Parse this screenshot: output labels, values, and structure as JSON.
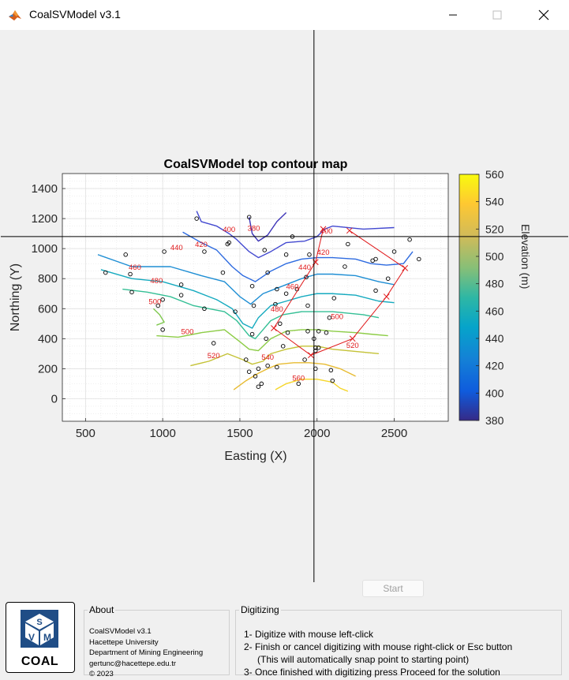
{
  "window": {
    "title": "CoalSVModel v3.1"
  },
  "plot": {
    "title": "CoalSVModel top contour map",
    "xlabel": "Easting (X)",
    "ylabel": "Northing (Y)",
    "xlim": [
      350,
      2850
    ],
    "ylim": [
      -150,
      1500
    ],
    "xticks": [
      500,
      1000,
      1500,
      2000,
      2500
    ],
    "yticks": [
      0,
      200,
      400,
      600,
      800,
      1000,
      1200,
      1400
    ],
    "grid": true,
    "colorbar": {
      "label": "Elevation (m)",
      "ticks": [
        380,
        400,
        420,
        440,
        460,
        480,
        500,
        520,
        540,
        560
      ],
      "range": [
        380,
        560
      ]
    },
    "cursor": {
      "x": 1980,
      "y": 1080
    }
  },
  "chart_data": {
    "type": "contour",
    "title": "CoalSVModel top contour map",
    "xlabel": "Easting (X)",
    "ylabel": "Northing (Y)",
    "xlim": [
      350,
      2850
    ],
    "ylim": [
      -150,
      1500
    ],
    "contours": [
      {
        "level": 380,
        "label": "380",
        "label_at": [
          1590,
          1120
        ],
        "color": "#3c33b7",
        "points": [
          [
            1560,
            1210
          ],
          [
            1580,
            1100
          ],
          [
            1620,
            1050
          ],
          [
            1680,
            1090
          ],
          [
            1740,
            1180
          ],
          [
            1800,
            1240
          ]
        ]
      },
      {
        "level": 400,
        "label": "400",
        "label_at": [
          1430,
          1110
        ],
        "color": "#4349d0",
        "points": [
          [
            1220,
            1250
          ],
          [
            1250,
            1180
          ],
          [
            1350,
            1150
          ],
          [
            1430,
            1100
          ],
          [
            1480,
            1060
          ],
          [
            1560,
            980
          ],
          [
            1620,
            940
          ],
          [
            1700,
            980
          ],
          [
            1800,
            1040
          ],
          [
            1920,
            1050
          ],
          [
            2000,
            1080
          ],
          [
            2050,
            1130
          ],
          [
            2100,
            1150
          ],
          [
            2300,
            1130
          ],
          [
            2500,
            1140
          ]
        ]
      },
      {
        "level": 400,
        "label": "400",
        "label_at": [
          2060,
          1100
        ],
        "color": "#4349d0",
        "points": []
      },
      {
        "level": 420,
        "label": "420",
        "label_at": [
          2040,
          960
        ],
        "color": "#2e6be0",
        "points": [
          [
            1130,
            1110
          ],
          [
            1250,
            1040
          ],
          [
            1350,
            990
          ],
          [
            1450,
            880
          ],
          [
            1520,
            820
          ],
          [
            1600,
            780
          ],
          [
            1700,
            850
          ],
          [
            1800,
            900
          ],
          [
            1900,
            930
          ],
          [
            2000,
            940
          ],
          [
            2100,
            940
          ],
          [
            2250,
            930
          ],
          [
            2350,
            900
          ],
          [
            2450,
            890
          ],
          [
            2560,
            900
          ],
          [
            2620,
            980
          ]
        ]
      },
      {
        "level": 420,
        "label": "420",
        "label_at": [
          1250,
          1010
        ],
        "color": "#2e6be0",
        "points": []
      },
      {
        "level": 440,
        "label": "440",
        "label_at": [
          1090,
          990
        ],
        "color": "#1e8ed4",
        "points": [
          [
            580,
            960
          ],
          [
            800,
            880
          ],
          [
            1050,
            880
          ],
          [
            1250,
            820
          ],
          [
            1400,
            780
          ],
          [
            1500,
            680
          ],
          [
            1570,
            630
          ],
          [
            1650,
            700
          ],
          [
            1800,
            760
          ],
          [
            1900,
            800
          ],
          [
            2000,
            830
          ],
          [
            2100,
            830
          ],
          [
            2250,
            820
          ],
          [
            2400,
            780
          ],
          [
            2500,
            760
          ]
        ]
      },
      {
        "level": 440,
        "label": "440",
        "label_at": [
          1920,
          860
        ],
        "color": "#1e8ed4",
        "points": []
      },
      {
        "level": 460,
        "label": "460",
        "label_at": [
          820,
          860
        ],
        "color": "#15aabf",
        "points": [
          [
            600,
            860
          ],
          [
            800,
            800
          ],
          [
            1000,
            780
          ],
          [
            1200,
            720
          ],
          [
            1350,
            660
          ],
          [
            1450,
            600
          ],
          [
            1520,
            500
          ],
          [
            1580,
            470
          ],
          [
            1620,
            540
          ],
          [
            1700,
            620
          ],
          [
            1800,
            650
          ],
          [
            1900,
            680
          ],
          [
            2000,
            700
          ],
          [
            2100,
            700
          ],
          [
            2250,
            690
          ],
          [
            2400,
            650
          ],
          [
            2500,
            640
          ]
        ]
      },
      {
        "level": 460,
        "label": "460",
        "label_at": [
          1840,
          730
        ],
        "color": "#15aabf",
        "points": []
      },
      {
        "level": 480,
        "label": "480",
        "label_at": [
          960,
          770
        ],
        "color": "#34bf95",
        "points": [
          [
            740,
            730
          ],
          [
            900,
            710
          ],
          [
            1050,
            680
          ],
          [
            1200,
            620
          ],
          [
            1300,
            600
          ],
          [
            1400,
            580
          ],
          [
            1480,
            520
          ],
          [
            1560,
            420
          ],
          [
            1600,
            400
          ],
          [
            1650,
            460
          ],
          [
            1700,
            520
          ],
          [
            1780,
            560
          ],
          [
            1900,
            580
          ],
          [
            2000,
            580
          ],
          [
            2100,
            580
          ],
          [
            2300,
            560
          ],
          [
            2400,
            540
          ]
        ]
      },
      {
        "level": 480,
        "label": "480",
        "label_at": [
          1740,
          580
        ],
        "color": "#34bf95",
        "points": []
      },
      {
        "level": 500,
        "label": "500",
        "label_at": [
          950,
          630
        ],
        "color": "#7fc84f",
        "points": [
          [
            940,
            600
          ],
          [
            980,
            560
          ],
          [
            1010,
            510
          ],
          [
            960,
            490
          ]
        ]
      },
      {
        "level": 500,
        "label": "500",
        "label_at": [
          1160,
          430
        ],
        "color": "#8ccc45",
        "points": [
          [
            960,
            420
          ],
          [
            1100,
            410
          ],
          [
            1250,
            440
          ],
          [
            1400,
            460
          ],
          [
            1500,
            380
          ],
          [
            1560,
            330
          ],
          [
            1620,
            320
          ],
          [
            1700,
            400
          ],
          [
            1800,
            450
          ],
          [
            1900,
            460
          ],
          [
            2000,
            460
          ],
          [
            2100,
            450
          ],
          [
            2250,
            440
          ],
          [
            2350,
            430
          ],
          [
            2460,
            420
          ]
        ]
      },
      {
        "level": 500,
        "label": "500",
        "label_at": [
          2130,
          530
        ],
        "color": "#8ccc45",
        "points": []
      },
      {
        "level": 520,
        "label": "520",
        "label_at": [
          1330,
          270
        ],
        "color": "#c4c236",
        "points": [
          [
            1180,
            220
          ],
          [
            1300,
            250
          ],
          [
            1420,
            300
          ],
          [
            1520,
            260
          ],
          [
            1580,
            230
          ],
          [
            1650,
            250
          ],
          [
            1700,
            300
          ],
          [
            1800,
            330
          ],
          [
            1900,
            350
          ],
          [
            2000,
            350
          ],
          [
            2100,
            330
          ],
          [
            2200,
            320
          ],
          [
            2300,
            310
          ],
          [
            2400,
            300
          ]
        ]
      },
      {
        "level": 520,
        "label": "520",
        "label_at": [
          2230,
          340
        ],
        "color": "#c4c236",
        "points": []
      },
      {
        "level": 540,
        "label": "540",
        "label_at": [
          1680,
          260
        ],
        "color": "#e7bb32",
        "points": [
          [
            1460,
            60
          ],
          [
            1540,
            120
          ],
          [
            1620,
            170
          ],
          [
            1680,
            200
          ],
          [
            1750,
            230
          ],
          [
            1850,
            240
          ],
          [
            1950,
            240
          ],
          [
            2050,
            230
          ],
          [
            2150,
            200
          ],
          [
            2250,
            150
          ]
        ]
      },
      {
        "level": 560,
        "label": "560",
        "label_at": [
          1880,
          120
        ],
        "color": "#f5d62a",
        "points": [
          [
            1730,
            60
          ],
          [
            1800,
            100
          ],
          [
            1900,
            130
          ],
          [
            2000,
            130
          ],
          [
            2100,
            110
          ],
          [
            2150,
            70
          ],
          [
            2200,
            50
          ]
        ]
      }
    ],
    "wells": [
      [
        1220,
        1200
      ],
      [
        1560,
        1210
      ],
      [
        1840,
        1080
      ],
      [
        1420,
        1030
      ],
      [
        1430,
        1040
      ],
      [
        1010,
        980
      ],
      [
        760,
        960
      ],
      [
        1270,
        980
      ],
      [
        1660,
        990
      ],
      [
        1800,
        960
      ],
      [
        1950,
        960
      ],
      [
        2200,
        1030
      ],
      [
        2600,
        1060
      ],
      [
        2500,
        980
      ],
      [
        2380,
        930
      ],
      [
        2660,
        930
      ],
      [
        2360,
        920
      ],
      [
        630,
        840
      ],
      [
        790,
        830
      ],
      [
        1390,
        840
      ],
      [
        1680,
        840
      ],
      [
        1930,
        810
      ],
      [
        2180,
        880
      ],
      [
        2460,
        800
      ],
      [
        1120,
        760
      ],
      [
        1580,
        750
      ],
      [
        1740,
        730
      ],
      [
        1870,
        730
      ],
      [
        2380,
        720
      ],
      [
        800,
        710
      ],
      [
        1120,
        690
      ],
      [
        1800,
        700
      ],
      [
        2110,
        670
      ],
      [
        1000,
        660
      ],
      [
        970,
        620
      ],
      [
        1270,
        600
      ],
      [
        1590,
        620
      ],
      [
        1730,
        630
      ],
      [
        1940,
        620
      ],
      [
        1470,
        580
      ],
      [
        2080,
        540
      ],
      [
        1760,
        500
      ],
      [
        1000,
        460
      ],
      [
        1580,
        430
      ],
      [
        1810,
        440
      ],
      [
        1940,
        450
      ],
      [
        2010,
        450
      ],
      [
        2060,
        440
      ],
      [
        1670,
        400
      ],
      [
        1980,
        400
      ],
      [
        1330,
        370
      ],
      [
        1780,
        350
      ],
      [
        1990,
        340
      ],
      [
        2010,
        340
      ],
      [
        1990,
        320
      ],
      [
        1540,
        260
      ],
      [
        1680,
        220
      ],
      [
        1920,
        260
      ],
      [
        1620,
        200
      ],
      [
        1740,
        210
      ],
      [
        1990,
        200
      ],
      [
        2090,
        190
      ],
      [
        1560,
        180
      ],
      [
        1600,
        150
      ],
      [
        2100,
        120
      ],
      [
        1640,
        100
      ],
      [
        1880,
        100
      ],
      [
        1620,
        80
      ]
    ],
    "polygon": {
      "vertices": [
        [
          2210,
          1120
        ],
        [
          2570,
          870
        ],
        [
          2450,
          680
        ],
        [
          2230,
          400
        ],
        [
          1960,
          290
        ],
        [
          1720,
          470
        ],
        [
          1990,
          910
        ],
        [
          2040,
          1130
        ]
      ],
      "closed": false
    }
  },
  "start_button": {
    "label": "Start"
  },
  "logo": {
    "text": "COAL",
    "letters": [
      "S",
      "V",
      "M"
    ]
  },
  "about": {
    "title": "About",
    "lines": [
      "CoalSVModel v3.1",
      "Hacettepe University",
      "Department of Mining Engineering",
      "gertunc@hacettepe.edu.tr",
      "© 2023"
    ]
  },
  "digitizing": {
    "title": "Digitizing",
    "lines": [
      "1- Digitize with mouse left-click",
      "2- Finish or cancel digitizing with mouse right-click or Esc button",
      "(This will automatically snap point to starting point)",
      "3- Once finished with digitizing press Proceed for the solution"
    ]
  }
}
